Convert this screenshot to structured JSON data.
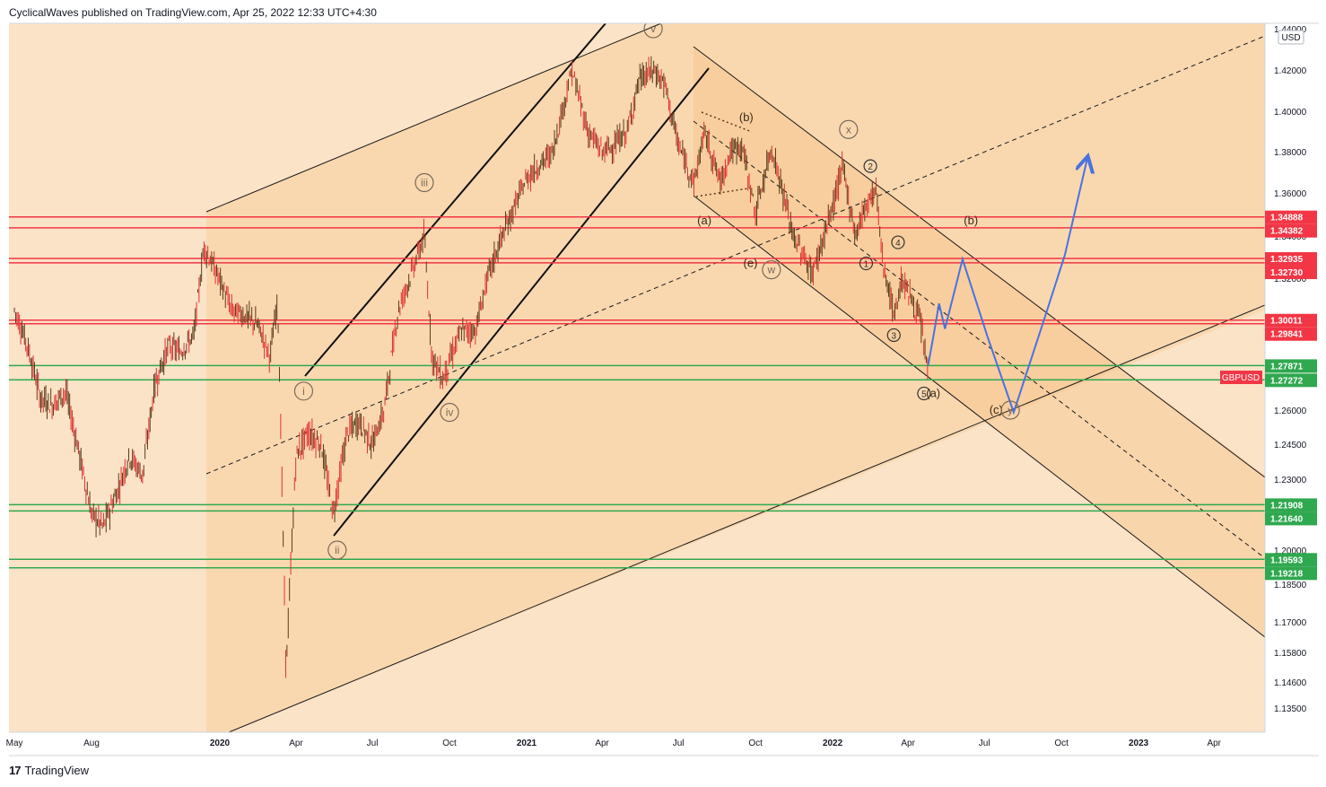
{
  "header": {
    "publisher_line": "CyclicalWaves published on TradingView.com, Apr 25, 2022 12:33 UTC+4:30"
  },
  "footer": {
    "logo_mark": "17",
    "logo_text": "TradingView"
  },
  "colors": {
    "background": "#fbe3c8",
    "channel_fill": "#f8cf9c",
    "resistance": "#f23645",
    "support": "#2fa84f",
    "candle_down": "#e0302f",
    "candle_up": "#5a3a1a",
    "projection": "#4a72e0",
    "label_ring": "#7a6a58"
  },
  "chart_data": {
    "type": "candlestick",
    "symbol": "GBPUSD",
    "currency": "USD",
    "current_price_tag": "GBPUSD",
    "y_axis_ticks": [
      "1.44000",
      "1.42000",
      "1.40000",
      "1.38000",
      "1.36000",
      "1.34000",
      "1.32000",
      "1.30000",
      "1.28000",
      "1.26000",
      "1.24500",
      "1.23000",
      "1.21500",
      "1.20000",
      "1.18500",
      "1.17000",
      "1.15800",
      "1.14600",
      "1.13500"
    ],
    "ylim": [
      1.125,
      1.445
    ],
    "x_axis_ticks": [
      "May",
      "Aug",
      "2020",
      "Apr",
      "Jul",
      "Oct",
      "2021",
      "Apr",
      "Jul",
      "Oct",
      "2022",
      "Apr",
      "Jul",
      "Oct",
      "2023",
      "Apr"
    ],
    "price_path": [
      [
        "2019-05-01",
        1.305
      ],
      [
        "2019-05-15",
        1.29
      ],
      [
        "2019-06-01",
        1.265
      ],
      [
        "2019-06-15",
        1.262
      ],
      [
        "2019-07-01",
        1.268
      ],
      [
        "2019-07-15",
        1.245
      ],
      [
        "2019-08-01",
        1.215
      ],
      [
        "2019-08-15",
        1.21
      ],
      [
        "2019-09-01",
        1.225
      ],
      [
        "2019-09-15",
        1.24
      ],
      [
        "2019-10-01",
        1.232
      ],
      [
        "2019-10-15",
        1.27
      ],
      [
        "2019-11-01",
        1.288
      ],
      [
        "2019-11-15",
        1.285
      ],
      [
        "2019-12-01",
        1.293
      ],
      [
        "2019-12-13",
        1.335
      ],
      [
        "2019-12-31",
        1.32
      ],
      [
        "2020-01-15",
        1.305
      ],
      [
        "2020-02-01",
        1.302
      ],
      [
        "2020-02-15",
        1.298
      ],
      [
        "2020-03-01",
        1.283
      ],
      [
        "2020-03-10",
        1.31
      ],
      [
        "2020-03-20",
        1.15
      ],
      [
        "2020-04-01",
        1.24
      ],
      [
        "2020-04-15",
        1.25
      ],
      [
        "2020-05-01",
        1.245
      ],
      [
        "2020-05-15",
        1.215
      ],
      [
        "2020-06-01",
        1.25
      ],
      [
        "2020-06-15",
        1.255
      ],
      [
        "2020-07-01",
        1.245
      ],
      [
        "2020-07-15",
        1.26
      ],
      [
        "2020-08-01",
        1.305
      ],
      [
        "2020-09-01",
        1.34
      ],
      [
        "2020-09-10",
        1.283
      ],
      [
        "2020-09-23",
        1.273
      ],
      [
        "2020-10-15",
        1.295
      ],
      [
        "2020-11-01",
        1.295
      ],
      [
        "2020-11-15",
        1.32
      ],
      [
        "2020-12-01",
        1.338
      ],
      [
        "2021-01-01",
        1.367
      ],
      [
        "2021-02-01",
        1.38
      ],
      [
        "2021-02-24",
        1.42
      ],
      [
        "2021-03-15",
        1.39
      ],
      [
        "2021-04-01",
        1.38
      ],
      [
        "2021-04-15",
        1.383
      ],
      [
        "2021-05-01",
        1.39
      ],
      [
        "2021-05-15",
        1.415
      ],
      [
        "2021-06-01",
        1.42
      ],
      [
        "2021-06-15",
        1.413
      ],
      [
        "2021-07-01",
        1.383
      ],
      [
        "2021-07-20",
        1.365
      ],
      [
        "2021-08-01",
        1.39
      ],
      [
        "2021-08-20",
        1.365
      ],
      [
        "2021-09-01",
        1.38
      ],
      [
        "2021-09-15",
        1.383
      ],
      [
        "2021-10-01",
        1.35
      ],
      [
        "2021-10-20",
        1.382
      ],
      [
        "2021-11-01",
        1.363
      ],
      [
        "2021-11-15",
        1.34
      ],
      [
        "2021-12-08",
        1.322
      ],
      [
        "2021-12-31",
        1.352
      ],
      [
        "2022-01-13",
        1.373
      ],
      [
        "2022-01-28",
        1.34
      ],
      [
        "2022-02-10",
        1.355
      ],
      [
        "2022-02-22",
        1.362
      ],
      [
        "2022-03-01",
        1.33
      ],
      [
        "2022-03-15",
        1.302
      ],
      [
        "2022-03-25",
        1.32
      ],
      [
        "2022-04-05",
        1.31
      ],
      [
        "2022-04-15",
        1.3
      ],
      [
        "2022-04-25",
        1.276
      ]
    ],
    "horizontal_levels": [
      {
        "label": "1.34888",
        "value": 1.34888,
        "kind": "resistance"
      },
      {
        "label": "1.34382",
        "value": 1.34382,
        "kind": "resistance"
      },
      {
        "label": "1.32935",
        "value": 1.32935,
        "kind": "resistance"
      },
      {
        "label": "1.32730",
        "value": 1.3273,
        "kind": "resistance"
      },
      {
        "label": "1.30011",
        "value": 1.30011,
        "kind": "resistance"
      },
      {
        "label": "1.29841",
        "value": 1.29841,
        "kind": "resistance"
      },
      {
        "label": "1.27871",
        "value": 1.27871,
        "kind": "support"
      },
      {
        "label": "1.27272",
        "value": 1.27272,
        "kind": "support"
      },
      {
        "label": "1.21908",
        "value": 1.21908,
        "kind": "support"
      },
      {
        "label": "1.21640",
        "value": 1.2164,
        "kind": "support"
      },
      {
        "label": "1.19593",
        "value": 1.19593,
        "kind": "support"
      },
      {
        "label": "1.19218",
        "value": 1.19218,
        "kind": "support"
      }
    ],
    "wave_labels": [
      {
        "text": "i",
        "date": "2020-04-10",
        "price": 1.268,
        "circled": true
      },
      {
        "text": "ii",
        "date": "2020-05-20",
        "price": 1.2,
        "circled": true
      },
      {
        "text": "iii",
        "date": "2020-09-01",
        "price": 1.365,
        "circled": true
      },
      {
        "text": "iv",
        "date": "2020-10-01",
        "price": 1.259,
        "circled": true
      },
      {
        "text": "v",
        "date": "2021-06-01",
        "price": 1.44,
        "circled": true
      },
      {
        "text": "(b)",
        "date": "2021-09-20",
        "price": 1.397,
        "circled": false
      },
      {
        "text": "(a)",
        "date": "2021-08-01",
        "price": 1.347,
        "circled": false
      },
      {
        "text": "(e)",
        "date": "2021-09-25",
        "price": 1.327,
        "circled": false
      },
      {
        "text": "w",
        "date": "2021-10-20",
        "price": 1.324,
        "circled": true
      },
      {
        "text": "x",
        "date": "2022-01-20",
        "price": 1.391,
        "circled": true
      },
      {
        "text": "2",
        "date": "2022-02-15",
        "price": 1.373,
        "circled": true
      },
      {
        "text": "4",
        "date": "2022-03-20",
        "price": 1.337,
        "circled": true
      },
      {
        "text": "1",
        "date": "2022-02-10",
        "price": 1.327,
        "circled": true
      },
      {
        "text": "3",
        "date": "2022-03-15",
        "price": 1.293,
        "circled": true
      },
      {
        "text": "5",
        "date": "2022-04-20",
        "price": 1.267,
        "circled": true
      },
      {
        "text": "(a)",
        "date": "2022-05-01",
        "price": 1.267,
        "circled": false
      },
      {
        "text": "(b)",
        "date": "2022-06-15",
        "price": 1.347,
        "circled": false
      },
      {
        "text": "(c)",
        "date": "2022-07-15",
        "price": 1.26,
        "circled": false
      },
      {
        "text": "y",
        "date": "2022-08-01",
        "price": 1.26,
        "circled": true
      }
    ],
    "projection_path": [
      [
        "2022-04-25",
        1.279
      ],
      [
        "2022-05-01",
        1.292
      ],
      [
        "2022-05-08",
        1.308
      ],
      [
        "2022-05-15",
        1.296
      ],
      [
        "2022-06-05",
        1.329
      ],
      [
        "2022-07-05",
        1.292
      ],
      [
        "2022-08-05",
        1.259
      ],
      [
        "2022-09-10",
        1.3
      ],
      [
        "2022-10-05",
        1.331
      ],
      [
        "2022-11-01",
        1.377
      ]
    ],
    "legend": "none",
    "grid": false
  }
}
